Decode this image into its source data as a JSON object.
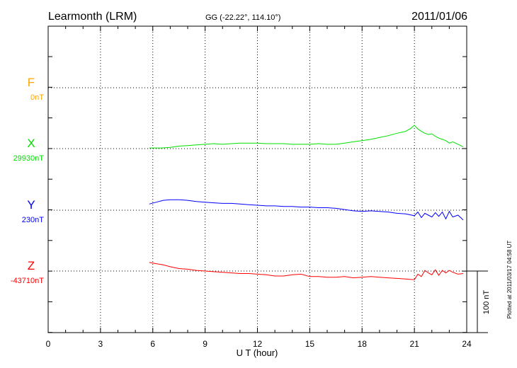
{
  "chart_data": {
    "type": "line",
    "title": "Learmonth (LRM)",
    "coords": "GG (-22.22°, 114.10°)",
    "date": "2011/01/06",
    "xlabel": "U T (hour)",
    "xlim": [
      0,
      24
    ],
    "xticks": [
      0,
      3,
      6,
      9,
      12,
      15,
      18,
      21,
      24
    ],
    "scale_label": "100 nT",
    "plotted_note": "Plotted at 2011/03/17 04:58 UT",
    "series": [
      {
        "name": "F",
        "baseline": "0nT",
        "color": "#ffa500",
        "values": []
      },
      {
        "name": "X",
        "baseline": "29930nT",
        "color": "#00e000",
        "x": [
          5.8,
          6.5,
          7.0,
          7.5,
          8.0,
          8.5,
          9.0,
          9.5,
          10.0,
          10.5,
          11.0,
          11.5,
          12.0,
          12.5,
          13.0,
          13.5,
          14.0,
          14.5,
          15.0,
          15.5,
          16.0,
          16.5,
          17.0,
          17.5,
          18.0,
          18.5,
          19.0,
          19.5,
          20.0,
          20.5,
          20.8,
          21.0,
          21.2,
          21.4,
          21.6,
          21.8,
          22.0,
          22.2,
          22.4,
          22.6,
          22.8,
          23.0,
          23.2,
          23.5,
          23.8
        ],
        "values": [
          1,
          1,
          2,
          4,
          5,
          6,
          7,
          8,
          7,
          8,
          9,
          9,
          9,
          8,
          8,
          8,
          7,
          7,
          7,
          8,
          7,
          7,
          9,
          11,
          13,
          15,
          18,
          21,
          25,
          28,
          33,
          38,
          32,
          28,
          25,
          23,
          24,
          20,
          17,
          15,
          13,
          9,
          11,
          7,
          3
        ]
      },
      {
        "name": "Y",
        "baseline": "230nT",
        "color": "#0000ff",
        "x": [
          5.8,
          6.2,
          6.6,
          7.0,
          7.5,
          8.0,
          8.5,
          9.0,
          9.5,
          10.0,
          10.5,
          11.0,
          11.5,
          12.0,
          12.5,
          13.0,
          13.5,
          14.0,
          14.5,
          15.0,
          15.5,
          16.0,
          16.5,
          17.0,
          17.5,
          18.0,
          18.5,
          19.0,
          19.5,
          20.0,
          20.5,
          21.0,
          21.2,
          21.4,
          21.6,
          21.8,
          22.0,
          22.2,
          22.4,
          22.6,
          22.8,
          23.0,
          23.2,
          23.5,
          23.8
        ],
        "values": [
          10,
          13,
          16,
          17,
          17,
          16,
          14,
          13,
          12,
          11,
          11,
          10,
          9,
          8,
          7,
          7,
          6,
          6,
          5,
          5,
          4,
          4,
          3,
          1,
          -1,
          -2,
          -1,
          -2,
          -3,
          -5,
          -6,
          -9,
          -3,
          -12,
          -5,
          -8,
          -11,
          -4,
          -10,
          -3,
          -14,
          -2,
          -11,
          -8,
          -16
        ]
      },
      {
        "name": "Z",
        "baseline": "-43710nT",
        "color": "#ff0000",
        "x": [
          5.8,
          6.2,
          6.6,
          7.0,
          7.5,
          8.0,
          8.5,
          9.0,
          9.5,
          10.0,
          10.5,
          11.0,
          11.5,
          12.0,
          12.5,
          13.0,
          13.5,
          14.0,
          14.5,
          15.0,
          15.5,
          16.0,
          16.5,
          17.0,
          17.5,
          18.0,
          18.5,
          19.0,
          19.5,
          20.0,
          20.5,
          21.0,
          21.2,
          21.4,
          21.6,
          21.8,
          22.0,
          22.2,
          22.4,
          22.6,
          22.8,
          23.0,
          23.2,
          23.5,
          23.8
        ],
        "values": [
          14,
          12,
          10,
          7,
          4,
          3,
          1,
          0,
          -1,
          -2,
          -3,
          -4,
          -4,
          -5,
          -6,
          -8,
          -8,
          -6,
          -5,
          -9,
          -9,
          -10,
          -10,
          -9,
          -11,
          -10,
          -9,
          -10,
          -11,
          -12,
          -13,
          -14,
          -5,
          -9,
          1,
          -3,
          -6,
          2,
          -7,
          1,
          -3,
          1,
          -2,
          -5,
          -4
        ]
      }
    ]
  }
}
